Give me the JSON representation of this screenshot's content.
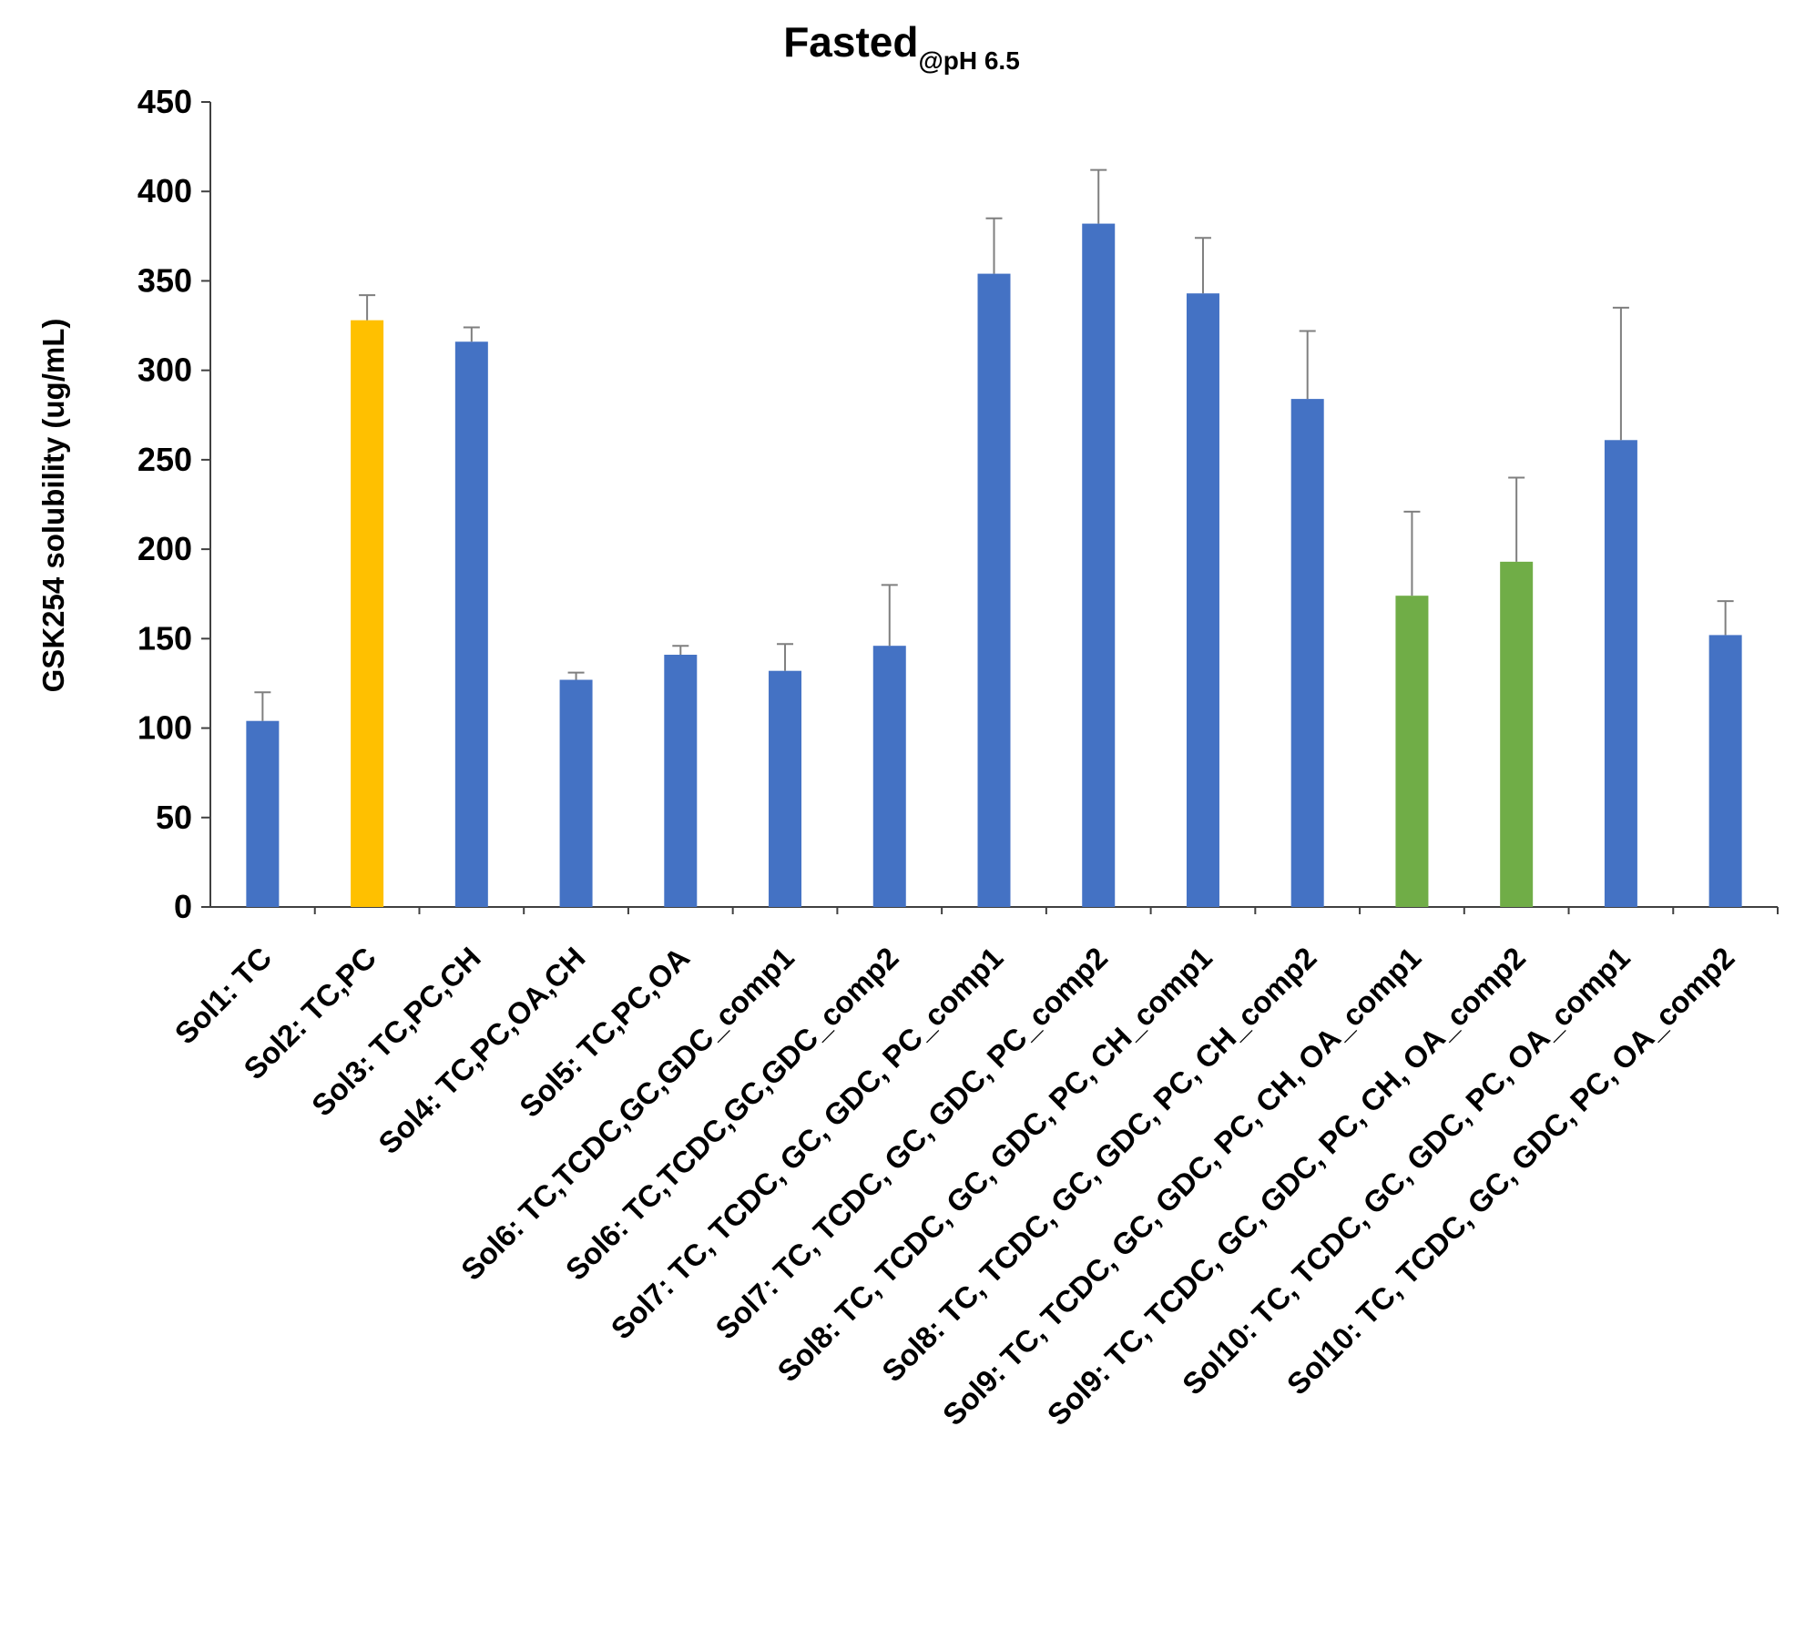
{
  "chart_data": {
    "type": "bar",
    "title": "Fasted",
    "title_subscript": "@pH 6.5",
    "xlabel": "",
    "ylabel": "GSK254 solubility (ug/mL)",
    "ylim": [
      0,
      450
    ],
    "yticks": [
      0,
      50,
      100,
      150,
      200,
      250,
      300,
      350,
      400,
      450
    ],
    "grid": false,
    "legend": "none",
    "categories": [
      "Sol1: TC",
      "Sol2: TC,PC",
      "Sol3: TC,PC,CH",
      "Sol4: TC,PC,OA,CH",
      "Sol5: TC,PC,OA",
      "Sol6: TC,TCDC,GC,GDC_comp1",
      "Sol6: TC,TCDC,GC,GDC_comp2",
      "Sol7: TC, TCDC, GC, GDC, PC_comp1",
      "Sol7: TC, TCDC, GC, GDC, PC_comp2",
      "Sol8: TC, TCDC, GC, GDC, PC, CH_comp1",
      "Sol8: TC, TCDC, GC, GDC, PC, CH_comp2",
      "Sol9: TC, TCDC, GC, GDC, PC, CH, OA_comp1",
      "Sol9: TC, TCDC, GC, GDC, PC, CH, OA_comp2",
      "Sol10: TC, TCDC, GC, GDC, PC, OA_comp1",
      "Sol10: TC, TCDC, GC, GDC, PC, OA_comp2"
    ],
    "values": [
      104,
      328,
      316,
      127,
      141,
      132,
      146,
      354,
      382,
      343,
      284,
      174,
      193,
      261,
      152
    ],
    "errors": [
      16,
      14,
      8,
      4,
      5,
      15,
      34,
      31,
      30,
      31,
      38,
      47,
      47,
      74,
      19
    ],
    "bar_colors": [
      "#4472C4",
      "#FFC000",
      "#4472C4",
      "#4472C4",
      "#4472C4",
      "#4472C4",
      "#4472C4",
      "#4472C4",
      "#4472C4",
      "#4472C4",
      "#4472C4",
      "#70AD47",
      "#70AD47",
      "#4472C4",
      "#4472C4"
    ],
    "error_color": "#7F7F7F",
    "axis_color": "#404040"
  }
}
